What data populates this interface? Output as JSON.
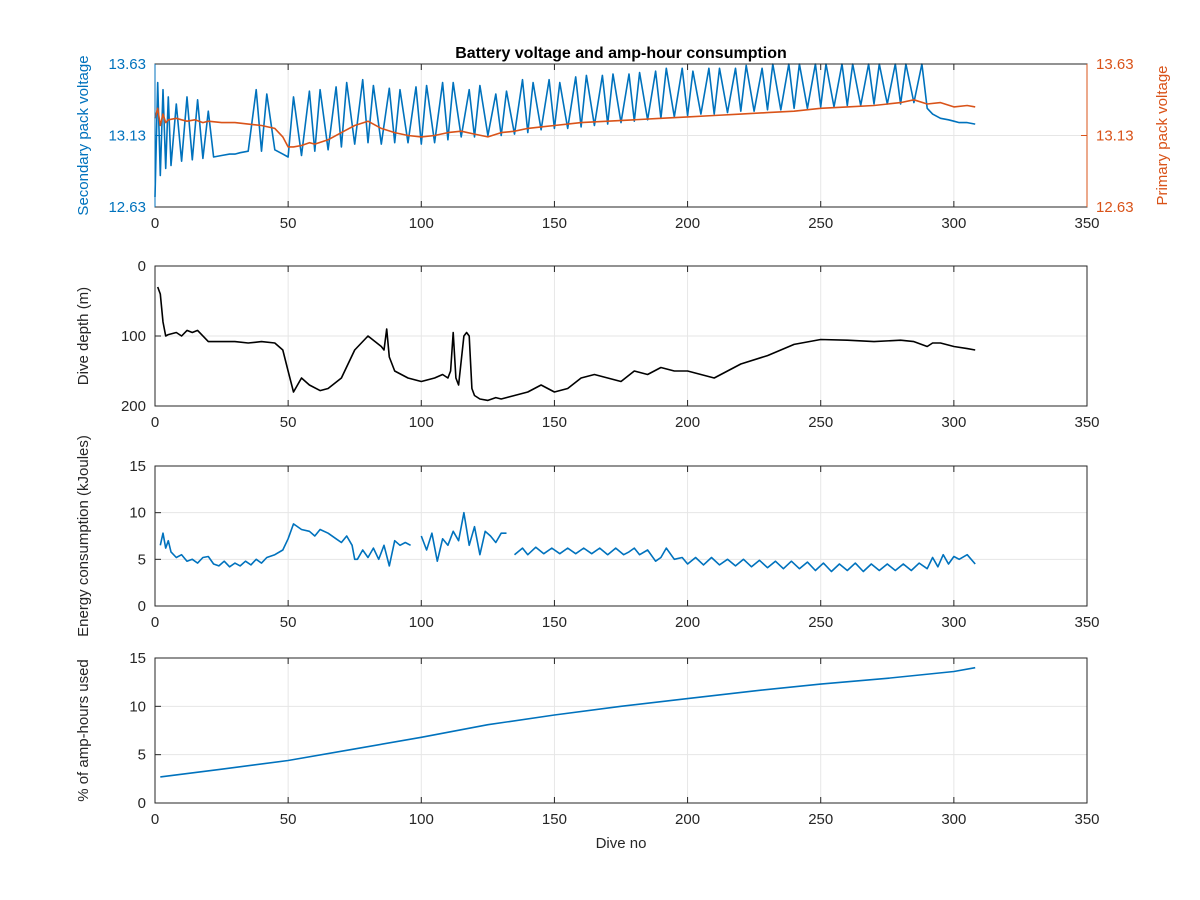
{
  "figure": {
    "title": "Battery voltage and amp-hour consumption",
    "background": "#ffffff"
  },
  "colors": {
    "blue": "#0072BD",
    "orange": "#D95319",
    "black": "#000000",
    "grid": "#e6e6e6",
    "axis": "#262626"
  },
  "chart_data": [
    {
      "type": "line",
      "title": "Battery voltage and amp-hour consumption",
      "xlabel": "",
      "xlim": [
        0,
        350
      ],
      "xticks": [
        "0",
        "50",
        "100",
        "150",
        "200",
        "250",
        "300",
        "350"
      ],
      "ylabel": "Secondary pack voltage",
      "ylim": [
        12.63,
        13.63
      ],
      "yticks": [
        "12.63",
        "13.13",
        "13.63"
      ],
      "ylabel_right": "Primary pack voltage",
      "ylim_right": [
        12.63,
        13.63
      ],
      "yticks_right": [
        "12.63",
        "13.13",
        "13.63"
      ],
      "grid": true,
      "series": [
        {
          "name": "",
          "axis": "left",
          "color": "#0072BD",
          "x": [
            0,
            1,
            2,
            3,
            4,
            5,
            6,
            8,
            10,
            12,
            14,
            16,
            18,
            20,
            22,
            25,
            28,
            30,
            32,
            35,
            38,
            40,
            42,
            45,
            48,
            50,
            52,
            55,
            58,
            60,
            62,
            65,
            68,
            70,
            72,
            75,
            78,
            80,
            82,
            85,
            88,
            90,
            92,
            95,
            98,
            100,
            102,
            105,
            108,
            110,
            112,
            115,
            118,
            120,
            122,
            125,
            128,
            130,
            132,
            135,
            138,
            140,
            142,
            145,
            148,
            150,
            152,
            155,
            158,
            160,
            162,
            165,
            168,
            170,
            172,
            175,
            178,
            180,
            182,
            185,
            188,
            190,
            192,
            195,
            198,
            200,
            202,
            205,
            208,
            210,
            212,
            215,
            218,
            220,
            222,
            225,
            228,
            230,
            232,
            235,
            238,
            240,
            242,
            245,
            248,
            250,
            252,
            255,
            258,
            260,
            262,
            265,
            268,
            270,
            272,
            275,
            278,
            280,
            282,
            285,
            288,
            290,
            292,
            295,
            298,
            300,
            302,
            305,
            308
          ],
          "values": [
            12.7,
            13.5,
            12.85,
            13.45,
            12.9,
            13.4,
            12.92,
            13.35,
            12.95,
            13.4,
            12.96,
            13.38,
            12.97,
            13.3,
            12.98,
            12.99,
            13.0,
            13.0,
            13.01,
            13.02,
            13.45,
            13.02,
            13.42,
            13.03,
            13.0,
            12.98,
            13.4,
            12.99,
            13.44,
            13.02,
            13.45,
            13.03,
            13.47,
            13.05,
            13.5,
            13.07,
            13.52,
            13.08,
            13.48,
            13.07,
            13.46,
            13.08,
            13.45,
            13.08,
            13.47,
            13.07,
            13.48,
            13.08,
            13.5,
            13.1,
            13.5,
            13.12,
            13.45,
            13.12,
            13.48,
            13.13,
            13.42,
            13.13,
            13.44,
            13.14,
            13.52,
            13.15,
            13.5,
            13.17,
            13.52,
            13.18,
            13.5,
            13.18,
            13.54,
            13.19,
            13.55,
            13.2,
            13.55,
            13.21,
            13.56,
            13.22,
            13.56,
            13.23,
            13.57,
            13.24,
            13.58,
            13.25,
            13.6,
            13.26,
            13.6,
            13.27,
            13.58,
            13.28,
            13.6,
            13.28,
            13.6,
            13.29,
            13.6,
            13.3,
            13.62,
            13.3,
            13.6,
            13.31,
            13.63,
            13.31,
            13.65,
            13.32,
            13.66,
            13.32,
            13.66,
            13.33,
            13.67,
            13.33,
            13.67,
            13.34,
            13.66,
            13.34,
            13.68,
            13.35,
            13.67,
            13.35,
            13.66,
            13.35,
            13.68,
            13.36,
            13.68,
            13.32,
            13.28,
            13.25,
            13.24,
            13.23,
            13.22,
            13.22,
            13.21
          ]
        },
        {
          "name": "",
          "axis": "right",
          "color": "#D95319",
          "x": [
            0,
            1,
            2,
            3,
            4,
            5,
            8,
            10,
            12,
            15,
            18,
            20,
            25,
            30,
            35,
            40,
            45,
            48,
            50,
            52,
            55,
            58,
            60,
            65,
            70,
            75,
            80,
            85,
            90,
            95,
            100,
            105,
            110,
            115,
            120,
            125,
            130,
            135,
            140,
            145,
            150,
            155,
            160,
            170,
            180,
            190,
            200,
            210,
            220,
            230,
            240,
            250,
            260,
            270,
            280,
            285,
            290,
            295,
            300,
            305,
            308
          ],
          "values": [
            13.25,
            13.32,
            13.2,
            13.28,
            13.22,
            13.24,
            13.25,
            13.24,
            13.23,
            13.24,
            13.22,
            13.23,
            13.22,
            13.22,
            13.21,
            13.2,
            13.18,
            13.12,
            13.05,
            13.05,
            13.06,
            13.08,
            13.07,
            13.1,
            13.15,
            13.2,
            13.23,
            13.18,
            13.15,
            13.13,
            13.12,
            13.13,
            13.15,
            13.16,
            13.14,
            13.12,
            13.15,
            13.16,
            13.18,
            13.19,
            13.2,
            13.21,
            13.22,
            13.23,
            13.24,
            13.25,
            13.26,
            13.27,
            13.28,
            13.29,
            13.3,
            13.32,
            13.33,
            13.34,
            13.36,
            13.38,
            13.35,
            13.36,
            13.33,
            13.34,
            13.33
          ]
        }
      ]
    },
    {
      "type": "line",
      "title": "",
      "xlabel": "",
      "xlim": [
        0,
        350
      ],
      "xticks": [
        "0",
        "50",
        "100",
        "150",
        "200",
        "250",
        "300",
        "350"
      ],
      "ylabel": "Dive depth (m)",
      "ylim": [
        0,
        200
      ],
      "y_reversed": true,
      "yticks": [
        "0",
        "100",
        "200"
      ],
      "grid": true,
      "series": [
        {
          "name": "",
          "color": "#000000",
          "x": [
            1,
            2,
            3,
            4,
            5,
            8,
            10,
            12,
            14,
            16,
            20,
            25,
            30,
            35,
            40,
            45,
            48,
            50,
            52,
            55,
            58,
            62,
            65,
            70,
            75,
            80,
            85,
            86,
            87,
            88,
            90,
            95,
            100,
            105,
            108,
            110,
            111,
            112,
            113,
            114,
            116,
            117,
            118,
            119,
            120,
            122,
            125,
            128,
            130,
            135,
            140,
            145,
            150,
            155,
            160,
            165,
            170,
            175,
            180,
            185,
            190,
            195,
            200,
            205,
            210,
            215,
            220,
            230,
            240,
            250,
            260,
            270,
            280,
            285,
            290,
            292,
            295,
            300,
            305,
            308
          ],
          "values": [
            30,
            40,
            80,
            100,
            98,
            95,
            100,
            92,
            95,
            92,
            108,
            108,
            108,
            110,
            108,
            110,
            120,
            150,
            180,
            160,
            170,
            178,
            175,
            160,
            120,
            100,
            115,
            120,
            90,
            130,
            150,
            160,
            165,
            160,
            155,
            160,
            150,
            95,
            160,
            170,
            100,
            95,
            100,
            175,
            185,
            190,
            192,
            188,
            190,
            185,
            180,
            170,
            180,
            175,
            160,
            155,
            160,
            165,
            150,
            155,
            145,
            150,
            150,
            155,
            160,
            150,
            140,
            128,
            112,
            105,
            106,
            108,
            106,
            108,
            115,
            110,
            110,
            115,
            118,
            120
          ]
        }
      ]
    },
    {
      "type": "line",
      "title": "",
      "xlabel": "",
      "xlim": [
        0,
        350
      ],
      "xticks": [
        "0",
        "50",
        "100",
        "150",
        "200",
        "250",
        "300",
        "350"
      ],
      "ylabel": "Energy consumption (kJoules)",
      "ylim": [
        0,
        15
      ],
      "yticks": [
        "0",
        "5",
        "10",
        "15"
      ],
      "grid": true,
      "series": [
        {
          "name": "",
          "color": "#0072BD",
          "x": [
            2,
            3,
            4,
            5,
            6,
            8,
            10,
            12,
            14,
            16,
            18,
            20,
            22,
            24,
            26,
            28,
            30,
            32,
            34,
            36,
            38,
            40,
            42,
            45,
            48,
            50,
            52,
            55,
            58,
            60,
            62,
            65,
            68,
            70,
            72,
            74,
            75,
            76,
            78,
            80,
            82,
            84,
            86,
            88,
            90,
            92,
            94,
            96,
            null,
            100,
            102,
            104,
            106,
            108,
            110,
            112,
            114,
            116,
            118,
            120,
            122,
            124,
            126,
            128,
            130,
            132,
            null,
            135,
            138,
            140,
            143,
            146,
            149,
            152,
            155,
            158,
            161,
            164,
            167,
            170,
            173,
            176,
            178,
            180,
            182,
            185,
            188,
            190,
            192,
            195,
            198,
            200,
            203,
            206,
            209,
            212,
            215,
            218,
            221,
            224,
            227,
            230,
            233,
            236,
            239,
            242,
            245,
            248,
            251,
            254,
            257,
            260,
            263,
            266,
            269,
            272,
            275,
            278,
            281,
            284,
            287,
            290,
            292,
            294,
            296,
            298,
            300,
            302,
            305,
            308
          ],
          "values": [
            6.5,
            7.8,
            6.2,
            7.0,
            5.8,
            5.2,
            5.5,
            4.8,
            5.0,
            4.6,
            5.2,
            5.3,
            4.5,
            4.3,
            4.8,
            4.2,
            4.6,
            4.3,
            4.8,
            4.4,
            5.0,
            4.6,
            5.2,
            5.5,
            6.0,
            7.2,
            8.8,
            8.2,
            8.0,
            7.5,
            8.2,
            7.8,
            7.2,
            6.8,
            7.5,
            6.5,
            5.0,
            5.0,
            6.0,
            5.2,
            6.2,
            5.0,
            6.5,
            4.3,
            7.0,
            6.5,
            6.8,
            6.5,
            null,
            7.5,
            6.0,
            7.8,
            4.8,
            7.2,
            6.5,
            8.0,
            7.0,
            10.0,
            6.5,
            8.5,
            5.5,
            8.0,
            7.5,
            6.8,
            7.8,
            7.8,
            null,
            5.5,
            6.2,
            5.5,
            6.3,
            5.6,
            6.2,
            5.6,
            6.2,
            5.6,
            6.2,
            5.6,
            6.2,
            5.5,
            6.2,
            5.5,
            5.8,
            6.2,
            5.5,
            6.0,
            4.8,
            5.2,
            6.2,
            5.0,
            5.2,
            4.5,
            5.2,
            4.4,
            5.2,
            4.4,
            5.0,
            4.3,
            5.0,
            4.2,
            4.9,
            4.1,
            4.8,
            4.0,
            4.8,
            4.0,
            4.7,
            3.8,
            4.6,
            3.7,
            4.5,
            3.8,
            4.6,
            3.7,
            4.5,
            3.8,
            4.5,
            3.8,
            4.5,
            3.8,
            4.6,
            4.0,
            5.2,
            4.2,
            5.5,
            4.5,
            5.3,
            5.0,
            5.5,
            4.5
          ]
        }
      ]
    },
    {
      "type": "line",
      "title": "",
      "xlabel": "Dive no",
      "xlim": [
        0,
        350
      ],
      "xticks": [
        "0",
        "50",
        "100",
        "150",
        "200",
        "250",
        "300",
        "350"
      ],
      "ylabel": "% of amp-hours used",
      "ylim": [
        0,
        15
      ],
      "yticks": [
        "0",
        "5",
        "10",
        "15"
      ],
      "grid": true,
      "series": [
        {
          "name": "",
          "color": "#0072BD",
          "x": [
            2,
            25,
            50,
            75,
            100,
            125,
            150,
            175,
            200,
            225,
            250,
            275,
            300,
            308
          ],
          "values": [
            2.7,
            3.5,
            4.4,
            5.6,
            6.8,
            8.1,
            9.1,
            10.0,
            10.8,
            11.6,
            12.3,
            12.9,
            13.6,
            14.0
          ]
        }
      ]
    }
  ]
}
